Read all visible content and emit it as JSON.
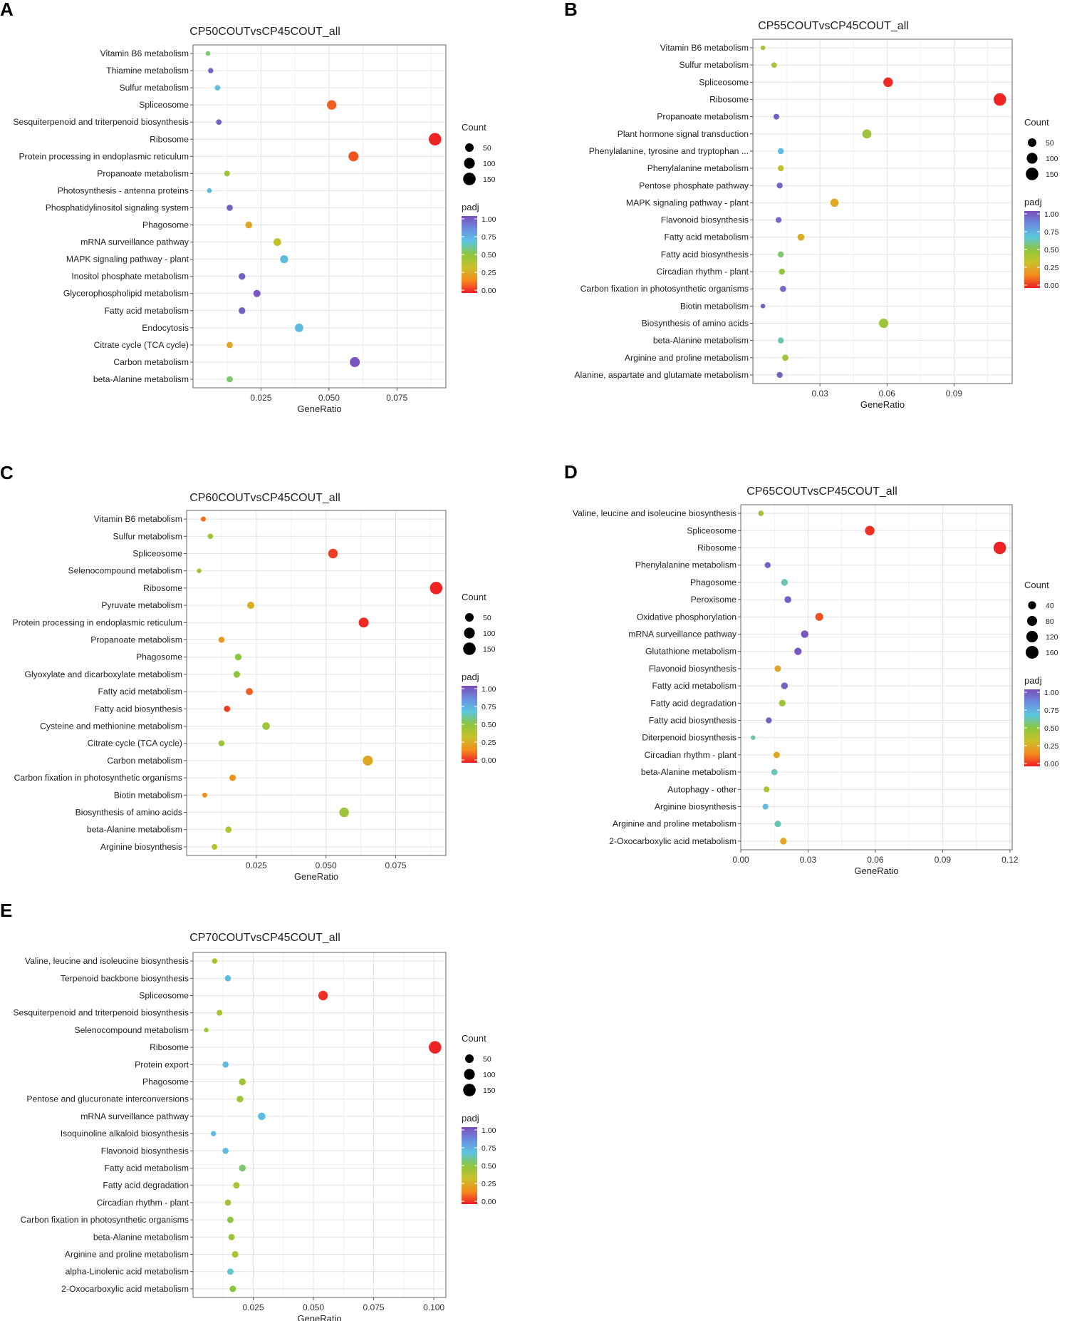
{
  "figure": {
    "panels_letters": [
      "A",
      "B",
      "C",
      "D",
      "E"
    ]
  },
  "colorscale": {
    "stops": [
      "#ee1c25",
      "#f48c1c",
      "#c9c12a",
      "#8cc63f",
      "#5cc6e0",
      "#6a8de0",
      "#7a4eb8"
    ]
  },
  "chart_data": [
    {
      "id": "A",
      "type": "scatter",
      "title": "CP50COUTvsCP45COUT_all",
      "xlabel": "GeneRatio",
      "ylabel": "",
      "xlim": [
        0.0,
        0.093
      ],
      "xticks": [
        0.025,
        0.05,
        0.075
      ],
      "xtick_labels": [
        "0.025",
        "0.050",
        "0.075"
      ],
      "size_legend": {
        "title": "Count",
        "values": [
          50,
          100,
          150
        ],
        "labels": [
          "50",
          "100",
          "150"
        ],
        "max": 170
      },
      "color_legend": {
        "title": "padj",
        "labels": [
          "1.00",
          "0.75",
          "0.50",
          "0.25",
          "0.00"
        ]
      },
      "points": [
        {
          "term": "Vitamin B6 metabolism",
          "x": 0.0055,
          "count": 4,
          "padj": 0.55
        },
        {
          "term": "Thiamine metabolism",
          "x": 0.0065,
          "count": 8,
          "padj": 0.95
        },
        {
          "term": "Sulfur metabolism",
          "x": 0.009,
          "count": 10,
          "padj": 0.7
        },
        {
          "term": "Spliceosome",
          "x": 0.051,
          "count": 70,
          "padj": 0.1
        },
        {
          "term": "Sesquiterpenoid and triterpenoid biosynthesis",
          "x": 0.0095,
          "count": 10,
          "padj": 0.95
        },
        {
          "term": "Ribosome",
          "x": 0.089,
          "count": 150,
          "padj": 0.01
        },
        {
          "term": "Protein processing in endoplasmic reticulum",
          "x": 0.059,
          "count": 80,
          "padj": 0.08
        },
        {
          "term": "Propanoate metabolism",
          "x": 0.0125,
          "count": 12,
          "padj": 0.45
        },
        {
          "term": "Photosynthesis - antenna proteins",
          "x": 0.006,
          "count": 5,
          "padj": 0.7
        },
        {
          "term": "Phosphatidylinositol signaling system",
          "x": 0.0135,
          "count": 16,
          "padj": 0.95
        },
        {
          "term": "Phagosome",
          "x": 0.0205,
          "count": 24,
          "padj": 0.25
        },
        {
          "term": "mRNA surveillance pathway",
          "x": 0.031,
          "count": 36,
          "padj": 0.35
        },
        {
          "term": "MAPK signaling pathway - plant",
          "x": 0.0335,
          "count": 40,
          "padj": 0.7
        },
        {
          "term": "Inositol phosphate metabolism",
          "x": 0.018,
          "count": 22,
          "padj": 0.95
        },
        {
          "term": "Glycerophospholipid metabolism",
          "x": 0.0235,
          "count": 28,
          "padj": 0.97
        },
        {
          "term": "Fatty acid metabolism",
          "x": 0.018,
          "count": 22,
          "padj": 0.95
        },
        {
          "term": "Endocytosis",
          "x": 0.039,
          "count": 48,
          "padj": 0.7
        },
        {
          "term": "Citrate cycle (TCA cycle)",
          "x": 0.0135,
          "count": 16,
          "padj": 0.25
        },
        {
          "term": "Carbon metabolism",
          "x": 0.0595,
          "count": 80,
          "padj": 0.98
        },
        {
          "term": "beta-Alanine metabolism",
          "x": 0.0135,
          "count": 16,
          "padj": 0.55
        }
      ]
    },
    {
      "id": "B",
      "type": "scatter",
      "title": "CP55COUTvsCP45COUT_all",
      "xlabel": "GeneRatio",
      "ylabel": "",
      "xlim": [
        0.0,
        0.116
      ],
      "xticks": [
        0.03,
        0.06,
        0.09
      ],
      "xtick_labels": [
        "0.03",
        "0.06",
        "0.09"
      ],
      "size_legend": {
        "title": "Count",
        "values": [
          50,
          100,
          150
        ],
        "labels": [
          "50",
          "100",
          "150"
        ],
        "max": 170
      },
      "color_legend": {
        "title": "padj",
        "labels": [
          "1.00",
          "0.75",
          "0.50",
          "0.25",
          "0.00"
        ]
      },
      "points": [
        {
          "term": "Vitamin B6 metabolism",
          "x": 0.0045,
          "count": 4,
          "padj": 0.45
        },
        {
          "term": "Sulfur metabolism",
          "x": 0.0095,
          "count": 10,
          "padj": 0.42
        },
        {
          "term": "Spliceosome",
          "x": 0.0605,
          "count": 70,
          "padj": 0.02
        },
        {
          "term": "Ribosome",
          "x": 0.1105,
          "count": 150,
          "padj": 0.01
        },
        {
          "term": "Propanoate metabolism",
          "x": 0.0105,
          "count": 12,
          "padj": 0.95
        },
        {
          "term": "Plant hormone signal transduction",
          "x": 0.051,
          "count": 60,
          "padj": 0.45
        },
        {
          "term": "Phenylalanine, tyrosine and tryptophan ...",
          "x": 0.0125,
          "count": 14,
          "padj": 0.7
        },
        {
          "term": "Phenylalanine metabolism",
          "x": 0.0125,
          "count": 14,
          "padj": 0.35
        },
        {
          "term": "Pentose phosphate pathway",
          "x": 0.012,
          "count": 14,
          "padj": 0.93
        },
        {
          "term": "MAPK signaling pathway - plant",
          "x": 0.0365,
          "count": 44,
          "padj": 0.25
        },
        {
          "term": "Flavonoid biosynthesis",
          "x": 0.0115,
          "count": 13,
          "padj": 0.93
        },
        {
          "term": "Fatty acid metabolism",
          "x": 0.0215,
          "count": 26,
          "padj": 0.28
        },
        {
          "term": "Fatty acid biosynthesis",
          "x": 0.0125,
          "count": 14,
          "padj": 0.55
        },
        {
          "term": "Circadian rhythm - plant",
          "x": 0.013,
          "count": 15,
          "padj": 0.48
        },
        {
          "term": "Carbon fixation in photosynthetic organisms",
          "x": 0.0135,
          "count": 16,
          "padj": 0.93
        },
        {
          "term": "Biotin metabolism",
          "x": 0.0045,
          "count": 4,
          "padj": 0.95
        },
        {
          "term": "Biosynthesis of amino acids",
          "x": 0.0585,
          "count": 68,
          "padj": 0.45
        },
        {
          "term": "beta-Alanine metabolism",
          "x": 0.0125,
          "count": 14,
          "padj": 0.62
        },
        {
          "term": "Arginine and proline metabolism",
          "x": 0.0145,
          "count": 17,
          "padj": 0.45
        },
        {
          "term": "Alanine, aspartate and glutamate metabolism",
          "x": 0.012,
          "count": 14,
          "padj": 0.95
        }
      ]
    },
    {
      "id": "C",
      "type": "scatter",
      "title": "CP60COUTvsCP45COUT_all",
      "xlabel": "GeneRatio",
      "ylabel": "",
      "xlim": [
        0.0,
        0.093
      ],
      "xticks": [
        0.025,
        0.05,
        0.075
      ],
      "xtick_labels": [
        "0.025",
        "0.050",
        "0.075"
      ],
      "size_legend": {
        "title": "Count",
        "values": [
          50,
          100,
          150
        ],
        "labels": [
          "50",
          "100",
          "150"
        ],
        "max": 170
      },
      "color_legend": {
        "title": "padj",
        "labels": [
          "1.00",
          "0.75",
          "0.50",
          "0.25",
          "0.00"
        ]
      },
      "points": [
        {
          "term": "Vitamin B6 metabolism",
          "x": 0.006,
          "count": 6,
          "padj": 0.12
        },
        {
          "term": "Sulfur metabolism",
          "x": 0.0085,
          "count": 9,
          "padj": 0.45
        },
        {
          "term": "Spliceosome",
          "x": 0.0525,
          "count": 70,
          "padj": 0.05
        },
        {
          "term": "Selenocompound metabolism",
          "x": 0.0045,
          "count": 4,
          "padj": 0.45
        },
        {
          "term": "Ribosome",
          "x": 0.0895,
          "count": 150,
          "padj": 0.01
        },
        {
          "term": "Pyruvate metabolism",
          "x": 0.023,
          "count": 28,
          "padj": 0.27
        },
        {
          "term": "Protein processing in endoplasmic reticulum",
          "x": 0.0635,
          "count": 80,
          "padj": 0.02
        },
        {
          "term": "Propanoate metabolism",
          "x": 0.0125,
          "count": 14,
          "padj": 0.2
        },
        {
          "term": "Phagosome",
          "x": 0.0185,
          "count": 22,
          "padj": 0.5
        },
        {
          "term": "Glyoxylate and dicarboxylate metabolism",
          "x": 0.018,
          "count": 21,
          "padj": 0.5
        },
        {
          "term": "Fatty acid metabolism",
          "x": 0.0225,
          "count": 26,
          "padj": 0.1
        },
        {
          "term": "Fatty acid biosynthesis",
          "x": 0.0145,
          "count": 17,
          "padj": 0.05
        },
        {
          "term": "Cysteine and methionine metabolism",
          "x": 0.0285,
          "count": 34,
          "padj": 0.45
        },
        {
          "term": "Citrate cycle (TCA cycle)",
          "x": 0.0125,
          "count": 14,
          "padj": 0.45
        },
        {
          "term": "Carbon metabolism",
          "x": 0.065,
          "count": 82,
          "padj": 0.25
        },
        {
          "term": "Carbon fixation in photosynthetic organisms",
          "x": 0.0165,
          "count": 19,
          "padj": 0.2
        },
        {
          "term": "Biotin metabolism",
          "x": 0.0065,
          "count": 6,
          "padj": 0.18
        },
        {
          "term": "Biosynthesis of amino acids",
          "x": 0.0565,
          "count": 72,
          "padj": 0.45
        },
        {
          "term": "beta-Alanine metabolism",
          "x": 0.015,
          "count": 17,
          "padj": 0.4
        },
        {
          "term": "Arginine biosynthesis",
          "x": 0.01,
          "count": 11,
          "padj": 0.4
        }
      ]
    },
    {
      "id": "D",
      "type": "scatter",
      "title": "CP65COUTvsCP45COUT_all",
      "xlabel": "GeneRatio",
      "ylabel": "",
      "xlim": [
        0.0,
        0.121
      ],
      "xticks": [
        0.0,
        0.03,
        0.06,
        0.09,
        0.12
      ],
      "xtick_labels": [
        "0.00",
        "0.03",
        "0.06",
        "0.09",
        "0.12"
      ],
      "size_legend": {
        "title": "Count",
        "values": [
          40,
          80,
          120,
          160
        ],
        "labels": [
          "40",
          "80",
          "120",
          "160"
        ],
        "max": 170
      },
      "color_legend": {
        "title": "padj",
        "labels": [
          "1.00",
          "0.75",
          "0.50",
          "0.25",
          "0.00"
        ]
      },
      "points": [
        {
          "term": "Valine, leucine and isoleucine biosynthesis",
          "x": 0.009,
          "count": 9,
          "padj": 0.45
        },
        {
          "term": "Spliceosome",
          "x": 0.0575,
          "count": 70,
          "padj": 0.03
        },
        {
          "term": "Ribosome",
          "x": 0.1155,
          "count": 150,
          "padj": 0.01
        },
        {
          "term": "Phenylalanine metabolism",
          "x": 0.012,
          "count": 14,
          "padj": 0.95
        },
        {
          "term": "Phagosome",
          "x": 0.0195,
          "count": 22,
          "padj": 0.62
        },
        {
          "term": "Peroxisome",
          "x": 0.021,
          "count": 24,
          "padj": 0.95
        },
        {
          "term": "Oxidative phosphorylation",
          "x": 0.035,
          "count": 40,
          "padj": 0.08
        },
        {
          "term": "mRNA surveillance pathway",
          "x": 0.0285,
          "count": 33,
          "padj": 0.97
        },
        {
          "term": "Glutathione metabolism",
          "x": 0.0255,
          "count": 30,
          "padj": 0.97
        },
        {
          "term": "Flavonoid biosynthesis",
          "x": 0.0165,
          "count": 19,
          "padj": 0.25
        },
        {
          "term": "Fatty acid metabolism",
          "x": 0.0195,
          "count": 22,
          "padj": 0.95
        },
        {
          "term": "Fatty acid degradation",
          "x": 0.0185,
          "count": 21,
          "padj": 0.45
        },
        {
          "term": "Fatty acid biosynthesis",
          "x": 0.0125,
          "count": 14,
          "padj": 0.95
        },
        {
          "term": "Diterpenoid biosynthesis",
          "x": 0.0055,
          "count": 4,
          "padj": 0.6
        },
        {
          "term": "Circadian rhythm - plant",
          "x": 0.016,
          "count": 18,
          "padj": 0.25
        },
        {
          "term": "beta-Alanine metabolism",
          "x": 0.015,
          "count": 17,
          "padj": 0.62
        },
        {
          "term": "Autophagy - other",
          "x": 0.0115,
          "count": 13,
          "padj": 0.42
        },
        {
          "term": "Arginine biosynthesis",
          "x": 0.011,
          "count": 12,
          "padj": 0.7
        },
        {
          "term": "Arginine and proline metabolism",
          "x": 0.0165,
          "count": 19,
          "padj": 0.62
        },
        {
          "term": "2-Oxocarboxylic acid metabolism",
          "x": 0.019,
          "count": 22,
          "padj": 0.25
        }
      ]
    },
    {
      "id": "E",
      "type": "scatter",
      "title": "CP70COUTvsCP45COUT_all",
      "xlabel": "GeneRatio",
      "ylabel": "",
      "xlim": [
        0.0,
        0.105
      ],
      "xticks": [
        0.025,
        0.05,
        0.075,
        0.1
      ],
      "xtick_labels": [
        "0.025",
        "0.050",
        "0.075",
        "0.100"
      ],
      "size_legend": {
        "title": "Count",
        "values": [
          50,
          100,
          150
        ],
        "labels": [
          "50",
          "100",
          "150"
        ],
        "max": 170
      },
      "color_legend": {
        "title": "padj",
        "labels": [
          "1.00",
          "0.75",
          "0.50",
          "0.25",
          "0.00"
        ]
      },
      "points": [
        {
          "term": "Valine, leucine and isoleucine biosynthesis",
          "x": 0.009,
          "count": 9,
          "padj": 0.42
        },
        {
          "term": "Terpenoid backbone biosynthesis",
          "x": 0.0145,
          "count": 16,
          "padj": 0.7
        },
        {
          "term": "Spliceosome",
          "x": 0.054,
          "count": 70,
          "padj": 0.03
        },
        {
          "term": "Sesquiterpenoid and triterpenoid biosynthesis",
          "x": 0.011,
          "count": 12,
          "padj": 0.42
        },
        {
          "term": "Selenocompound metabolism",
          "x": 0.0055,
          "count": 4,
          "padj": 0.45
        },
        {
          "term": "Ribosome",
          "x": 0.1005,
          "count": 150,
          "padj": 0.01
        },
        {
          "term": "Protein export",
          "x": 0.0135,
          "count": 15,
          "padj": 0.7
        },
        {
          "term": "Phagosome",
          "x": 0.0205,
          "count": 24,
          "padj": 0.45
        },
        {
          "term": "Pentose and glucuronate interconversions",
          "x": 0.0195,
          "count": 22,
          "padj": 0.45
        },
        {
          "term": "mRNA surveillance pathway",
          "x": 0.0285,
          "count": 33,
          "padj": 0.7
        },
        {
          "term": "Isoquinoline alkaloid biosynthesis",
          "x": 0.0085,
          "count": 8,
          "padj": 0.7
        },
        {
          "term": "Flavonoid biosynthesis",
          "x": 0.0135,
          "count": 15,
          "padj": 0.7
        },
        {
          "term": "Fatty acid metabolism",
          "x": 0.0205,
          "count": 24,
          "padj": 0.55
        },
        {
          "term": "Fatty acid degradation",
          "x": 0.018,
          "count": 20,
          "padj": 0.42
        },
        {
          "term": "Circadian rhythm - plant",
          "x": 0.0145,
          "count": 16,
          "padj": 0.45
        },
        {
          "term": "Carbon fixation in photosynthetic organisms",
          "x": 0.0155,
          "count": 18,
          "padj": 0.5
        },
        {
          "term": "beta-Alanine metabolism",
          "x": 0.016,
          "count": 18,
          "padj": 0.45
        },
        {
          "term": "Arginine and proline metabolism",
          "x": 0.0175,
          "count": 20,
          "padj": 0.42
        },
        {
          "term": "alpha-Linolenic acid metabolism",
          "x": 0.0155,
          "count": 18,
          "padj": 0.65
        },
        {
          "term": "2-Oxocarboxylic acid metabolism",
          "x": 0.0165,
          "count": 19,
          "padj": 0.5
        }
      ]
    }
  ]
}
